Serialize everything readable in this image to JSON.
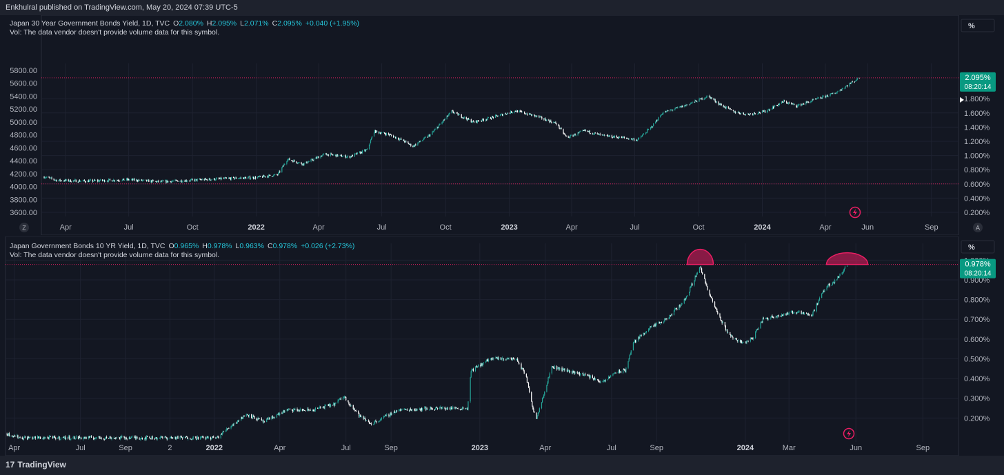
{
  "header": {
    "text": "Enkhulral published on TradingView.com, May 20, 2024 07:39 UTC-5"
  },
  "footer": {
    "brand": "TradingView",
    "brand_mark": "17"
  },
  "colors": {
    "bg": "#131722",
    "up": "#26a69a",
    "down": "#ffffff",
    "accent": "#e91e63",
    "label": "#089981",
    "cyan": "#26c6da"
  },
  "chart_data": [
    {
      "type": "candlestick",
      "legend": {
        "title": "Japan 30 Year Government Bonds Yield, 1D, TVC",
        "o_label": "O",
        "o": "2.080%",
        "h_label": "H",
        "h": "2.095%",
        "l_label": "L",
        "l": "2.071%",
        "c_label": "C",
        "c": "2.095%",
        "change": "+0.040 (+1.95%)",
        "vol": "Vol: The data vendor doesn't provide volume data for this symbol."
      },
      "left_ticks": [
        "5800.00",
        "5600.00",
        "5400.00",
        "5200.00",
        "5000.00",
        "4800.00",
        "4600.00",
        "4400.00",
        "4200.00",
        "4000.00",
        "3800.00",
        "3600.00"
      ],
      "left_range": [
        3600,
        5800
      ],
      "right_ticks": [
        "1.800%",
        "1.600%",
        "1.400%",
        "1.200%",
        "1.000%",
        "0.800%",
        "0.600%",
        "0.400%",
        "0.200%"
      ],
      "right_range": [
        0.2,
        2.2
      ],
      "x_labels": [
        {
          "t": "Apr",
          "d": "2021-04-01"
        },
        {
          "t": "Jul",
          "d": "2021-07-01"
        },
        {
          "t": "Oct",
          "d": "2021-10-01"
        },
        {
          "t": "2022",
          "d": "2022-01-01",
          "bold": true
        },
        {
          "t": "Apr",
          "d": "2022-04-01"
        },
        {
          "t": "Jul",
          "d": "2022-07-01"
        },
        {
          "t": "Oct",
          "d": "2022-10-01"
        },
        {
          "t": "2023",
          "d": "2023-01-01",
          "bold": true
        },
        {
          "t": "Apr",
          "d": "2023-04-01"
        },
        {
          "t": "Jul",
          "d": "2023-07-01"
        },
        {
          "t": "Oct",
          "d": "2023-10-01"
        },
        {
          "t": "2024",
          "d": "2024-01-01",
          "bold": true
        },
        {
          "t": "Apr",
          "d": "2024-04-01"
        },
        {
          "t": "Jun",
          "d": "2024-06-01"
        },
        {
          "t": "Sep",
          "d": "2024-09-01"
        }
      ],
      "x_range": [
        "2021-02-25",
        "2024-10-10"
      ],
      "price_label": "2.095%",
      "countdown": "08:20:14",
      "pct_button": "%",
      "corner_left": "Z",
      "corner_right": "A",
      "hlines": [
        2.095,
        0.6
      ],
      "path": [
        {
          "d": "2021-03-01",
          "v": 0.7
        },
        {
          "d": "2021-03-20",
          "v": 0.65
        },
        {
          "d": "2021-05-01",
          "v": 0.64
        },
        {
          "d": "2021-07-01",
          "v": 0.66
        },
        {
          "d": "2021-08-15",
          "v": 0.63
        },
        {
          "d": "2021-10-15",
          "v": 0.66
        },
        {
          "d": "2021-12-01",
          "v": 0.68
        },
        {
          "d": "2022-01-01",
          "v": 0.69
        },
        {
          "d": "2022-02-01",
          "v": 0.73
        },
        {
          "d": "2022-02-15",
          "v": 0.95
        },
        {
          "d": "2022-03-10",
          "v": 0.88
        },
        {
          "d": "2022-04-10",
          "v": 1.02
        },
        {
          "d": "2022-05-15",
          "v": 0.98
        },
        {
          "d": "2022-06-10",
          "v": 1.08
        },
        {
          "d": "2022-06-20",
          "v": 1.34
        },
        {
          "d": "2022-07-10",
          "v": 1.3
        },
        {
          "d": "2022-08-01",
          "v": 1.21
        },
        {
          "d": "2022-08-15",
          "v": 1.13
        },
        {
          "d": "2022-09-10",
          "v": 1.3
        },
        {
          "d": "2022-10-10",
          "v": 1.62
        },
        {
          "d": "2022-11-10",
          "v": 1.47
        },
        {
          "d": "2022-12-01",
          "v": 1.52
        },
        {
          "d": "2023-01-10",
          "v": 1.63
        },
        {
          "d": "2023-02-10",
          "v": 1.55
        },
        {
          "d": "2023-03-10",
          "v": 1.45
        },
        {
          "d": "2023-03-25",
          "v": 1.25
        },
        {
          "d": "2023-04-20",
          "v": 1.35
        },
        {
          "d": "2023-05-15",
          "v": 1.28
        },
        {
          "d": "2023-06-15",
          "v": 1.25
        },
        {
          "d": "2023-07-05",
          "v": 1.22
        },
        {
          "d": "2023-07-25",
          "v": 1.4
        },
        {
          "d": "2023-08-10",
          "v": 1.6
        },
        {
          "d": "2023-09-10",
          "v": 1.7
        },
        {
          "d": "2023-10-01",
          "v": 1.78
        },
        {
          "d": "2023-10-15",
          "v": 1.84
        },
        {
          "d": "2023-11-01",
          "v": 1.72
        },
        {
          "d": "2023-11-20",
          "v": 1.62
        },
        {
          "d": "2023-12-10",
          "v": 1.58
        },
        {
          "d": "2024-01-05",
          "v": 1.62
        },
        {
          "d": "2024-02-01",
          "v": 1.76
        },
        {
          "d": "2024-02-20",
          "v": 1.7
        },
        {
          "d": "2024-03-15",
          "v": 1.78
        },
        {
          "d": "2024-04-15",
          "v": 1.88
        },
        {
          "d": "2024-05-20",
          "v": 2.095
        }
      ]
    },
    {
      "type": "candlestick",
      "legend": {
        "title": "Japan Government Bonds 10 YR Yield, 1D, TVC",
        "o_label": "O",
        "o": "0.965%",
        "h_label": "H",
        "h": "0.978%",
        "l_label": "L",
        "l": "0.963%",
        "c_label": "C",
        "c": "0.978%",
        "change": "+0.026 (+2.73%)",
        "vol": "Vol: The data vendor doesn't provide volume data for this symbol."
      },
      "right_ticks": [
        "1.000%",
        "0.900%",
        "0.800%",
        "0.700%",
        "0.600%",
        "0.500%",
        "0.400%",
        "0.300%",
        "0.200%"
      ],
      "right_range": [
        0.1,
        1.05
      ],
      "x_labels": [
        {
          "t": "Apr",
          "d": "2021-04-01"
        },
        {
          "t": "Jul",
          "d": "2021-07-01"
        },
        {
          "t": "Sep",
          "d": "2021-09-01"
        },
        {
          "t": "2",
          "d": "2021-11-01"
        },
        {
          "t": "2022",
          "d": "2022-01-01",
          "bold": true
        },
        {
          "t": "Apr",
          "d": "2022-04-01"
        },
        {
          "t": "Jul",
          "d": "2022-07-01"
        },
        {
          "t": "Sep",
          "d": "2022-09-01"
        },
        {
          "t": "2023",
          "d": "2023-01-01",
          "bold": true
        },
        {
          "t": "Apr",
          "d": "2023-04-01"
        },
        {
          "t": "Jul",
          "d": "2023-07-01"
        },
        {
          "t": "Sep",
          "d": "2023-09-01"
        },
        {
          "t": "2024",
          "d": "2024-01-01",
          "bold": true
        },
        {
          "t": "Mar",
          "d": "2024-03-01"
        },
        {
          "t": "Jun",
          "d": "2024-06-01"
        },
        {
          "t": "Sep",
          "d": "2024-09-01"
        }
      ],
      "x_range": [
        "2021-03-20",
        "2024-10-20"
      ],
      "price_label": "0.978%",
      "countdown": "08:20:14",
      "pct_button": "%",
      "hlines": [
        0.978
      ],
      "arcs": [
        {
          "d": "2023-10-31",
          "v": 0.978
        },
        {
          "d": "2024-05-20",
          "v": 0.978
        }
      ],
      "path": [
        {
          "d": "2021-03-22",
          "v": 0.12
        },
        {
          "d": "2021-04-10",
          "v": 0.1
        },
        {
          "d": "2022-01-05",
          "v": 0.1
        },
        {
          "d": "2022-01-20",
          "v": 0.15
        },
        {
          "d": "2022-02-15",
          "v": 0.22
        },
        {
          "d": "2022-03-10",
          "v": 0.18
        },
        {
          "d": "2022-04-10",
          "v": 0.24
        },
        {
          "d": "2022-05-15",
          "v": 0.24
        },
        {
          "d": "2022-06-15",
          "v": 0.27
        },
        {
          "d": "2022-06-28",
          "v": 0.31
        },
        {
          "d": "2022-07-20",
          "v": 0.21
        },
        {
          "d": "2022-08-05",
          "v": 0.17
        },
        {
          "d": "2022-09-10",
          "v": 0.24
        },
        {
          "d": "2022-11-01",
          "v": 0.25
        },
        {
          "d": "2022-12-15",
          "v": 0.25
        },
        {
          "d": "2022-12-20",
          "v": 0.44
        },
        {
          "d": "2023-01-15",
          "v": 0.5
        },
        {
          "d": "2023-02-20",
          "v": 0.5
        },
        {
          "d": "2023-03-05",
          "v": 0.42
        },
        {
          "d": "2023-03-15",
          "v": 0.25
        },
        {
          "d": "2023-03-20",
          "v": 0.2
        },
        {
          "d": "2023-04-10",
          "v": 0.46
        },
        {
          "d": "2023-05-01",
          "v": 0.44
        },
        {
          "d": "2023-05-25",
          "v": 0.42
        },
        {
          "d": "2023-06-20",
          "v": 0.38
        },
        {
          "d": "2023-07-05",
          "v": 0.43
        },
        {
          "d": "2023-07-20",
          "v": 0.44
        },
        {
          "d": "2023-07-31",
          "v": 0.58
        },
        {
          "d": "2023-08-20",
          "v": 0.65
        },
        {
          "d": "2023-09-15",
          "v": 0.7
        },
        {
          "d": "2023-10-10",
          "v": 0.8
        },
        {
          "d": "2023-10-31",
          "v": 0.97
        },
        {
          "d": "2023-11-10",
          "v": 0.85
        },
        {
          "d": "2023-11-25",
          "v": 0.72
        },
        {
          "d": "2023-12-10",
          "v": 0.62
        },
        {
          "d": "2023-12-28",
          "v": 0.58
        },
        {
          "d": "2024-01-10",
          "v": 0.6
        },
        {
          "d": "2024-01-25",
          "v": 0.7
        },
        {
          "d": "2024-02-15",
          "v": 0.72
        },
        {
          "d": "2024-03-15",
          "v": 0.74
        },
        {
          "d": "2024-04-01",
          "v": 0.72
        },
        {
          "d": "2024-04-20",
          "v": 0.86
        },
        {
          "d": "2024-05-05",
          "v": 0.9
        },
        {
          "d": "2024-05-20",
          "v": 0.978
        }
      ]
    }
  ]
}
